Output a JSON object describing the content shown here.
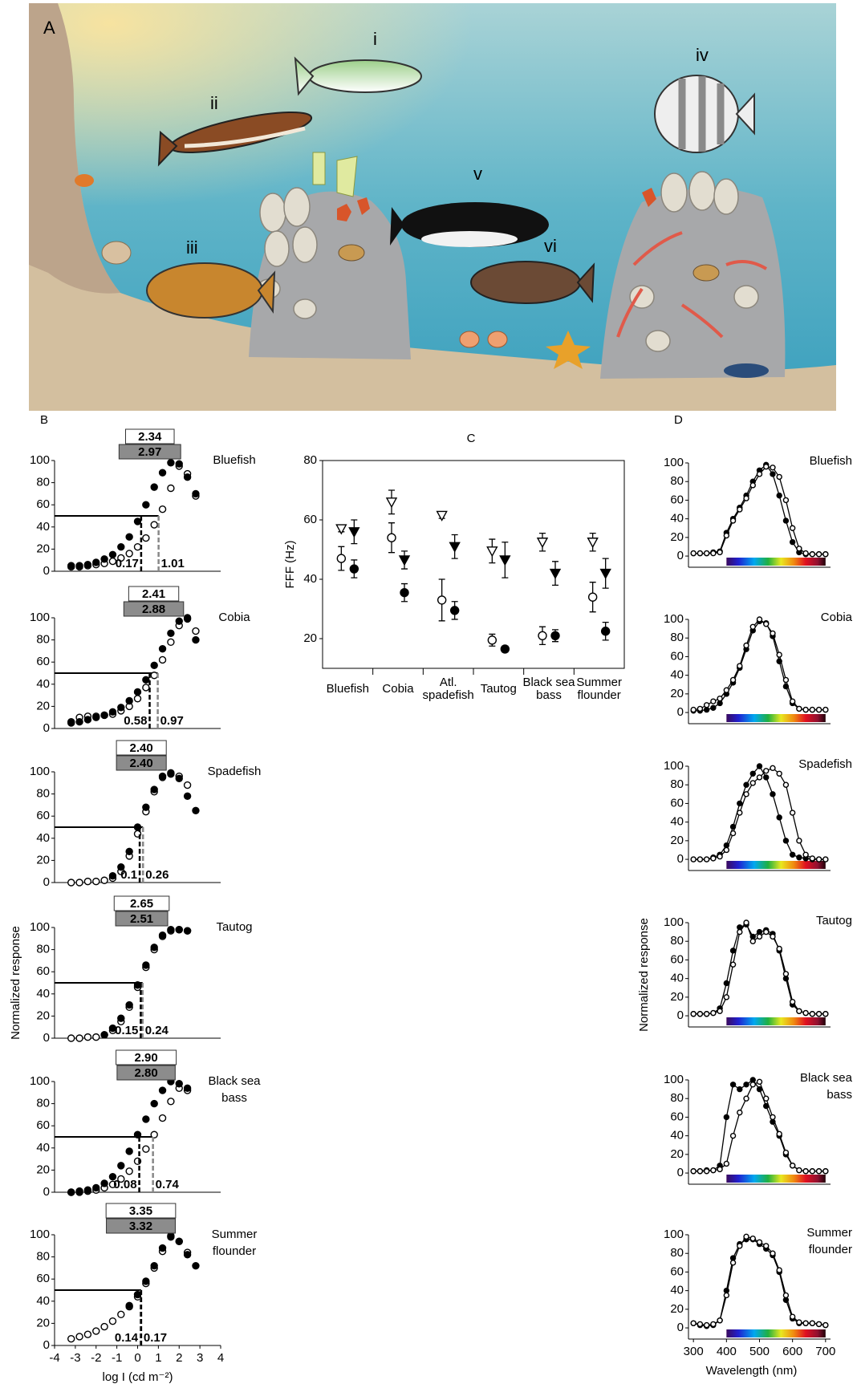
{
  "panel_a": {
    "label": "A",
    "fish_labels": [
      "i",
      "ii",
      "iii",
      "iv",
      "v",
      "vi"
    ]
  },
  "chart_data": [
    {
      "type": "intensity-response",
      "panel": "B",
      "title": [
        "Bluefish"
      ],
      "x": [
        -3.2,
        -2.8,
        -2.4,
        -2.0,
        -1.6,
        -1.2,
        -0.8,
        -0.4,
        0,
        0.4,
        0.8,
        1.2,
        1.6,
        2.0,
        2.4,
        2.8
      ],
      "xlim": [
        -4,
        4
      ],
      "ylim": [
        0,
        100
      ],
      "yticks": [
        0,
        20,
        40,
        60,
        80,
        100
      ],
      "reference_line": 50,
      "series": [
        {
          "marker": "open",
          "values": [
            4,
            4,
            5,
            6,
            7,
            9,
            12,
            16,
            22,
            30,
            42,
            56,
            75,
            95,
            88,
            68
          ],
          "half_saturation": 1.01,
          "dynamic_range": 2.34
        },
        {
          "marker": "filled",
          "values": [
            5,
            5,
            6,
            8,
            11,
            15,
            22,
            31,
            45,
            60,
            76,
            89,
            98,
            97,
            85,
            70
          ],
          "half_saturation": 0.17,
          "dynamic_range": 2.97
        }
      ]
    },
    {
      "type": "intensity-response",
      "title": [
        "Cobia"
      ],
      "x": [
        -3.2,
        -2.8,
        -2.4,
        -2.0,
        -1.6,
        -1.2,
        -0.8,
        -0.4,
        0,
        0.4,
        0.8,
        1.2,
        1.6,
        2.0,
        2.4,
        2.8
      ],
      "xlim": [
        -4,
        4
      ],
      "ylim": [
        0,
        100
      ],
      "yticks": [
        0,
        20,
        40,
        60,
        80,
        100
      ],
      "reference_line": 50,
      "series": [
        {
          "marker": "open",
          "values": [
            6,
            10,
            11,
            11,
            12,
            13,
            16,
            20,
            27,
            37,
            48,
            62,
            78,
            93,
            99,
            88
          ],
          "half_saturation": 0.97,
          "dynamic_range": 2.41
        },
        {
          "marker": "filled",
          "values": [
            5,
            6,
            8,
            10,
            12,
            15,
            19,
            25,
            33,
            44,
            57,
            72,
            86,
            97,
            100,
            80
          ],
          "half_saturation": 0.58,
          "dynamic_range": 2.88
        }
      ]
    },
    {
      "type": "intensity-response",
      "title": [
        "Spadefish"
      ],
      "x": [
        -3.2,
        -2.8,
        -2.4,
        -2.0,
        -1.6,
        -1.2,
        -0.8,
        -0.4,
        0,
        0.4,
        0.8,
        1.2,
        1.6,
        2.0,
        2.4,
        2.8
      ],
      "xlim": [
        -4,
        4
      ],
      "ylim": [
        0,
        100
      ],
      "yticks": [
        0,
        20,
        40,
        60,
        80,
        100
      ],
      "reference_line": 50,
      "series": [
        {
          "marker": "open",
          "values": [
            0,
            0,
            1,
            1,
            2,
            4,
            10,
            24,
            44,
            64,
            82,
            95,
            99,
            96,
            88,
            null
          ],
          "half_saturation": 0.26,
          "dynamic_range": 2.4,
          "dynamic_range_label": "2.40"
        },
        {
          "marker": "filled",
          "values": [
            null,
            null,
            null,
            null,
            null,
            6,
            14,
            28,
            50,
            68,
            84,
            96,
            98,
            94,
            78,
            65
          ],
          "half_saturation": 0.1,
          "dynamic_range": 2.4,
          "dynamic_range_label": "2.40"
        }
      ]
    },
    {
      "type": "intensity-response",
      "title": [
        "Tautog"
      ],
      "ylabel": "Normalized response",
      "x": [
        -3.2,
        -2.8,
        -2.4,
        -2.0,
        -1.6,
        -1.2,
        -0.8,
        -0.4,
        0,
        0.4,
        0.8,
        1.2,
        1.6,
        2.0,
        2.4,
        2.8
      ],
      "xlim": [
        -4,
        4
      ],
      "ylim": [
        0,
        100
      ],
      "yticks": [
        0,
        20,
        40,
        60,
        80,
        100
      ],
      "reference_line": 50,
      "series": [
        {
          "marker": "open",
          "values": [
            0,
            0,
            1,
            1,
            3,
            7,
            15,
            28,
            46,
            64,
            80,
            92,
            97,
            98,
            97,
            null
          ],
          "half_saturation": 0.24,
          "dynamic_range": 2.65
        },
        {
          "marker": "filled",
          "values": [
            null,
            null,
            null,
            null,
            3,
            9,
            18,
            30,
            48,
            66,
            82,
            93,
            98,
            98,
            97,
            null
          ],
          "half_saturation": 0.15,
          "dynamic_range": 2.51
        }
      ]
    },
    {
      "type": "intensity-response",
      "title": [
        "Black sea",
        "bass"
      ],
      "x": [
        -3.2,
        -2.8,
        -2.4,
        -2.0,
        -1.6,
        -1.2,
        -0.8,
        -0.4,
        0,
        0.4,
        0.8,
        1.2,
        1.6,
        2.0,
        2.4,
        2.8
      ],
      "xlim": [
        -4,
        4
      ],
      "ylim": [
        0,
        100
      ],
      "yticks": [
        0,
        20,
        40,
        60,
        80,
        100
      ],
      "reference_line": 50,
      "series": [
        {
          "marker": "open",
          "values": [
            0,
            0,
            1,
            2,
            4,
            7,
            12,
            19,
            28,
            39,
            52,
            67,
            82,
            94,
            92,
            null
          ],
          "half_saturation": 0.74,
          "dynamic_range": 2.9,
          "dynamic_range_label": "2.90"
        },
        {
          "marker": "filled",
          "values": [
            0,
            1,
            2,
            4,
            8,
            14,
            24,
            37,
            52,
            66,
            80,
            92,
            100,
            98,
            94,
            null
          ],
          "half_saturation": 0.08,
          "dynamic_range": 2.8,
          "dynamic_range_label": "2.80"
        }
      ]
    },
    {
      "type": "intensity-response",
      "title": [
        "Summer",
        "flounder"
      ],
      "xlabel": "log I (cd m⁻²)",
      "x": [
        -3.2,
        -2.8,
        -2.4,
        -2.0,
        -1.6,
        -1.2,
        -0.8,
        -0.4,
        0,
        0.4,
        0.8,
        1.2,
        1.6,
        2.0,
        2.4,
        2.8
      ],
      "xlim": [
        -4,
        4
      ],
      "ylim": [
        0,
        100
      ],
      "yticks": [
        0,
        20,
        40,
        60,
        80,
        100
      ],
      "xticks": [
        -4,
        -3,
        -2,
        -1,
        0,
        1,
        2,
        3,
        4
      ],
      "reference_line": 50,
      "series": [
        {
          "marker": "open",
          "values": [
            6,
            8,
            10,
            13,
            17,
            22,
            28,
            35,
            44,
            56,
            70,
            85,
            98,
            94,
            84,
            null
          ],
          "half_saturation": 0.14,
          "dynamic_range": 3.35
        },
        {
          "marker": "filled",
          "values": [
            null,
            null,
            null,
            null,
            null,
            null,
            null,
            36,
            46,
            58,
            72,
            88,
            99,
            94,
            82,
            72
          ],
          "half_saturation": 0.17,
          "dynamic_range": 3.32
        }
      ]
    },
    {
      "type": "scatter-error",
      "panel": "C",
      "ylabel": "FFF (Hz)",
      "categories": [
        [
          "Bluefish"
        ],
        [
          "Cobia"
        ],
        [
          "Atl.",
          "spadefish"
        ],
        [
          "Tautog"
        ],
        [
          "Black sea",
          "bass"
        ],
        [
          "Summer",
          "flounder"
        ]
      ],
      "ylim": [
        10,
        80
      ],
      "yticks": [
        20,
        40,
        60,
        80
      ],
      "series": [
        {
          "marker": "open-triangle",
          "values": [
            57,
            66,
            61.5,
            49.5,
            52.5,
            52.5
          ],
          "errors": [
            1,
            4,
            1,
            4,
            3,
            3
          ]
        },
        {
          "marker": "filled-triangle",
          "values": [
            56,
            46.5,
            51,
            46.5,
            42,
            42
          ],
          "errors": [
            4,
            3,
            4,
            6,
            4,
            5
          ]
        },
        {
          "marker": "open-circle",
          "values": [
            47,
            54,
            33,
            19.5,
            21,
            34
          ],
          "errors": [
            4,
            5,
            7,
            2,
            3,
            5
          ]
        },
        {
          "marker": "filled-circle",
          "values": [
            43.5,
            35.5,
            29.5,
            16.5,
            21,
            22.5
          ],
          "errors": [
            3,
            3,
            3,
            1,
            2,
            3
          ]
        }
      ]
    },
    {
      "type": "spectral",
      "panel": "D",
      "title": [
        "Bluefish"
      ],
      "x": [
        300,
        320,
        340,
        360,
        380,
        400,
        420,
        440,
        460,
        480,
        500,
        520,
        540,
        560,
        580,
        600,
        620,
        640,
        660,
        680,
        700
      ],
      "xlim": [
        285,
        715
      ],
      "ylim": [
        -12,
        100
      ],
      "yticks": [
        0,
        20,
        40,
        60,
        80,
        100
      ],
      "spectrum_bar": [
        400,
        700
      ],
      "series": [
        {
          "marker": "filled",
          "values": [
            3,
            3,
            3,
            4,
            5,
            25,
            40,
            52,
            65,
            80,
            92,
            98,
            88,
            65,
            38,
            15,
            4,
            2,
            2,
            2,
            2
          ]
        },
        {
          "marker": "open",
          "values": [
            3,
            3,
            3,
            3,
            4,
            22,
            38,
            50,
            62,
            76,
            88,
            96,
            95,
            85,
            60,
            30,
            8,
            3,
            2,
            2,
            2
          ]
        }
      ]
    },
    {
      "type": "spectral",
      "title": [
        "Cobia"
      ],
      "x": [
        300,
        320,
        340,
        360,
        380,
        400,
        420,
        440,
        460,
        480,
        500,
        520,
        540,
        560,
        580,
        600,
        620,
        640,
        660,
        680,
        700
      ],
      "xlim": [
        285,
        715
      ],
      "ylim": [
        -12,
        100
      ],
      "yticks": [
        0,
        20,
        40,
        60,
        80,
        100
      ],
      "spectrum_bar": [
        400,
        700
      ],
      "series": [
        {
          "marker": "filled",
          "values": [
            2,
            2,
            3,
            5,
            10,
            20,
            32,
            48,
            68,
            88,
            98,
            96,
            82,
            55,
            28,
            10,
            4,
            3,
            3,
            3,
            3
          ]
        },
        {
          "marker": "open",
          "values": [
            3,
            4,
            8,
            12,
            15,
            24,
            35,
            50,
            72,
            92,
            100,
            95,
            85,
            62,
            35,
            12,
            4,
            3,
            3,
            3,
            3
          ]
        }
      ]
    },
    {
      "type": "spectral",
      "title": [
        "Spadefish"
      ],
      "x": [
        300,
        320,
        340,
        360,
        380,
        400,
        420,
        440,
        460,
        480,
        500,
        520,
        540,
        560,
        580,
        600,
        620,
        640,
        660,
        680,
        700
      ],
      "xlim": [
        285,
        715
      ],
      "ylim": [
        -12,
        100
      ],
      "yticks": [
        0,
        20,
        40,
        60,
        80,
        100
      ],
      "spectrum_bar": [
        400,
        700
      ],
      "series": [
        {
          "marker": "filled",
          "values": [
            0,
            0,
            0,
            2,
            5,
            15,
            35,
            60,
            80,
            92,
            100,
            88,
            70,
            45,
            20,
            5,
            2,
            1,
            0,
            0,
            0
          ]
        },
        {
          "marker": "open",
          "values": [
            0,
            0,
            0,
            1,
            3,
            10,
            28,
            50,
            70,
            82,
            88,
            95,
            98,
            92,
            80,
            50,
            20,
            5,
            1,
            0,
            0
          ]
        }
      ]
    },
    {
      "type": "spectral",
      "title": [
        "Tautog"
      ],
      "ylabel": "Normalized response",
      "x": [
        300,
        320,
        340,
        360,
        380,
        400,
        420,
        440,
        460,
        480,
        500,
        520,
        540,
        560,
        580,
        600,
        620,
        640,
        660,
        680,
        700
      ],
      "xlim": [
        285,
        715
      ],
      "ylim": [
        -12,
        100
      ],
      "yticks": [
        0,
        20,
        40,
        60,
        80,
        100
      ],
      "spectrum_bar": [
        400,
        700
      ],
      "series": [
        {
          "marker": "filled",
          "values": [
            2,
            2,
            2,
            3,
            8,
            35,
            70,
            95,
            98,
            85,
            90,
            92,
            88,
            70,
            40,
            12,
            5,
            3,
            2,
            2,
            2
          ]
        },
        {
          "marker": "open",
          "values": [
            2,
            2,
            2,
            3,
            5,
            20,
            55,
            90,
            100,
            80,
            85,
            90,
            85,
            72,
            45,
            15,
            5,
            3,
            2,
            2,
            2
          ]
        }
      ]
    },
    {
      "type": "spectral",
      "title": [
        "Black sea",
        "bass"
      ],
      "x": [
        300,
        320,
        340,
        360,
        380,
        400,
        420,
        440,
        460,
        480,
        500,
        520,
        540,
        560,
        580,
        600,
        620,
        640,
        660,
        680,
        700
      ],
      "xlim": [
        285,
        715
      ],
      "ylim": [
        -12,
        100
      ],
      "yticks": [
        0,
        20,
        40,
        60,
        80,
        100
      ],
      "spectrum_bar": [
        400,
        700
      ],
      "series": [
        {
          "marker": "filled",
          "values": [
            2,
            2,
            3,
            3,
            8,
            60,
            95,
            90,
            95,
            100,
            90,
            72,
            55,
            40,
            20,
            8,
            3,
            2,
            2,
            2,
            2
          ]
        },
        {
          "marker": "open",
          "values": [
            2,
            2,
            2,
            3,
            4,
            10,
            40,
            65,
            80,
            95,
            98,
            80,
            60,
            42,
            22,
            8,
            3,
            2,
            2,
            2,
            2
          ]
        }
      ]
    },
    {
      "type": "spectral",
      "title": [
        "Summer",
        "flounder"
      ],
      "xlabel": "Wavelength (nm)",
      "x": [
        300,
        320,
        340,
        360,
        380,
        400,
        420,
        440,
        460,
        480,
        500,
        520,
        540,
        560,
        580,
        600,
        620,
        640,
        660,
        680,
        700
      ],
      "xlim": [
        285,
        715
      ],
      "ylim": [
        -12,
        100
      ],
      "yticks": [
        0,
        20,
        40,
        60,
        80,
        100
      ],
      "xticks": [
        300,
        400,
        500,
        600,
        700
      ],
      "spectrum_bar": [
        400,
        700
      ],
      "series": [
        {
          "marker": "filled",
          "values": [
            5,
            3,
            2,
            3,
            8,
            40,
            75,
            90,
            95,
            95,
            90,
            85,
            78,
            60,
            30,
            10,
            5,
            5,
            5,
            4,
            3
          ]
        },
        {
          "marker": "open",
          "values": [
            5,
            4,
            3,
            4,
            8,
            35,
            70,
            88,
            98,
            96,
            92,
            88,
            80,
            62,
            35,
            12,
            6,
            5,
            5,
            4,
            3
          ]
        }
      ]
    }
  ]
}
